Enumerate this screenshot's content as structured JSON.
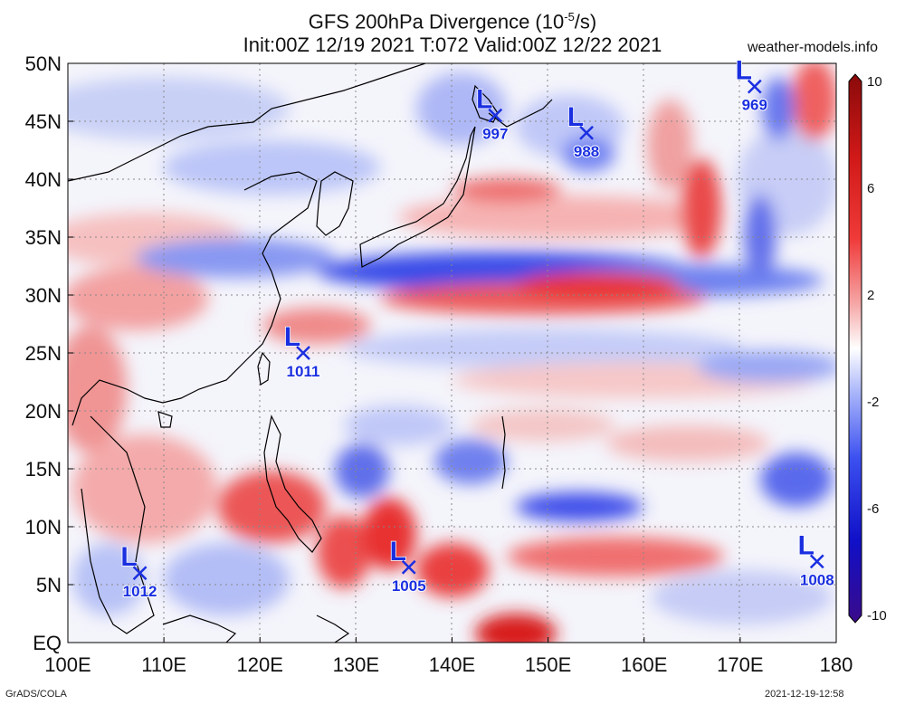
{
  "title": {
    "line1_prefix": "GFS 200hPa Divergence (10",
    "line1_exp": "-5",
    "line1_suffix": "/s)",
    "line2": "Init:00Z 12/19 2021 T:072 Valid:00Z 12/22 2021"
  },
  "watermark": "weather-models.info",
  "footer_left": "GrADS/COLA",
  "footer_right": "2021-12-19-12:58",
  "axes": {
    "lat_labels": [
      "50N",
      "45N",
      "40N",
      "35N",
      "30N",
      "25N",
      "20N",
      "15N",
      "10N",
      "5N",
      "EQ"
    ],
    "lon_labels": [
      "100E",
      "110E",
      "120E",
      "130E",
      "140E",
      "150E",
      "160E",
      "170E",
      "180"
    ]
  },
  "colorbar": {
    "labels": [
      "10",
      "6",
      "2",
      "-2",
      "-6",
      "-10"
    ],
    "colors": [
      "#3a0a8a",
      "#1010c8",
      "#3c50f0",
      "#7e92f6",
      "#bcc6fb",
      "#ffffff",
      "#f8c0c0",
      "#f47c7c",
      "#ec3030",
      "#c41818",
      "#8a0a0a"
    ]
  },
  "lows": [
    {
      "label": "L",
      "pressure": "997",
      "lon": 144.5,
      "lat": 45.5
    },
    {
      "label": "L",
      "pressure": "988",
      "lon": 154.0,
      "lat": 44.0
    },
    {
      "label": "L",
      "pressure": "969",
      "lon": 171.5,
      "lat": 48.0
    },
    {
      "label": "L",
      "pressure": "1011",
      "lon": 124.5,
      "lat": 25.0
    },
    {
      "label": "L",
      "pressure": "1012",
      "lon": 107.5,
      "lat": 6.0
    },
    {
      "label": "L",
      "pressure": "1005",
      "lon": 135.5,
      "lat": 6.5
    },
    {
      "label": "L",
      "pressure": "1008",
      "lon": 178.0,
      "lat": 7.0
    }
  ]
}
